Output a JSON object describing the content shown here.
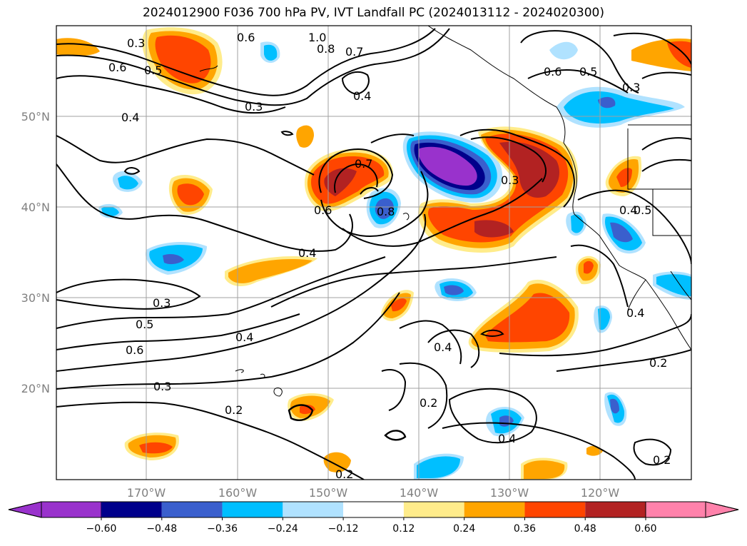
{
  "title": "2024012900 F036 700 hPa PV, IVT Landfall PC (2024013112 - 2024020300)",
  "lat_labels": [
    "50°N",
    "40°N",
    "30°N",
    "20°N"
  ],
  "lon_labels": [
    "170°W",
    "160°W",
    "150°W",
    "140°W",
    "130°W",
    "120°W"
  ],
  "colorbar": {
    "tick_labels": [
      "−0.60",
      "−0.48",
      "−0.36",
      "−0.24",
      "−0.12",
      "0.12",
      "0.24",
      "0.36",
      "0.48",
      "0.60"
    ],
    "colors": [
      "#9932cc",
      "#00008b",
      "#3a5fcd",
      "#00bfff",
      "#b0e2ff",
      "#ffffff",
      "#ffec8b",
      "#ffa500",
      "#ff4500",
      "#b22222",
      "#ff82ab"
    ]
  },
  "contour_labels": [
    {
      "text": "0.3"
    },
    {
      "text": "0.6"
    },
    {
      "text": "1.0"
    },
    {
      "text": "0.8"
    },
    {
      "text": "0.7"
    },
    {
      "text": "0.6"
    },
    {
      "text": "0.5"
    },
    {
      "text": "0.4"
    },
    {
      "text": "0.3"
    },
    {
      "text": "0.4"
    },
    {
      "text": "0.7"
    },
    {
      "text": "0.3"
    },
    {
      "text": "0.6"
    },
    {
      "text": "0.8"
    },
    {
      "text": "0.4"
    },
    {
      "text": "0.5"
    },
    {
      "text": "0.4"
    },
    {
      "text": "0.3"
    },
    {
      "text": "0.5"
    },
    {
      "text": "0.6"
    },
    {
      "text": "0.4"
    },
    {
      "text": "0.4"
    },
    {
      "text": "0.4"
    },
    {
      "text": "0.3"
    },
    {
      "text": "0.2"
    },
    {
      "text": "0.2"
    },
    {
      "text": "0.4"
    },
    {
      "text": "0.2"
    },
    {
      "text": "0.2"
    },
    {
      "text": "0.6"
    },
    {
      "text": "0.5"
    },
    {
      "text": "0.3"
    },
    {
      "text": "0.2"
    }
  ]
}
